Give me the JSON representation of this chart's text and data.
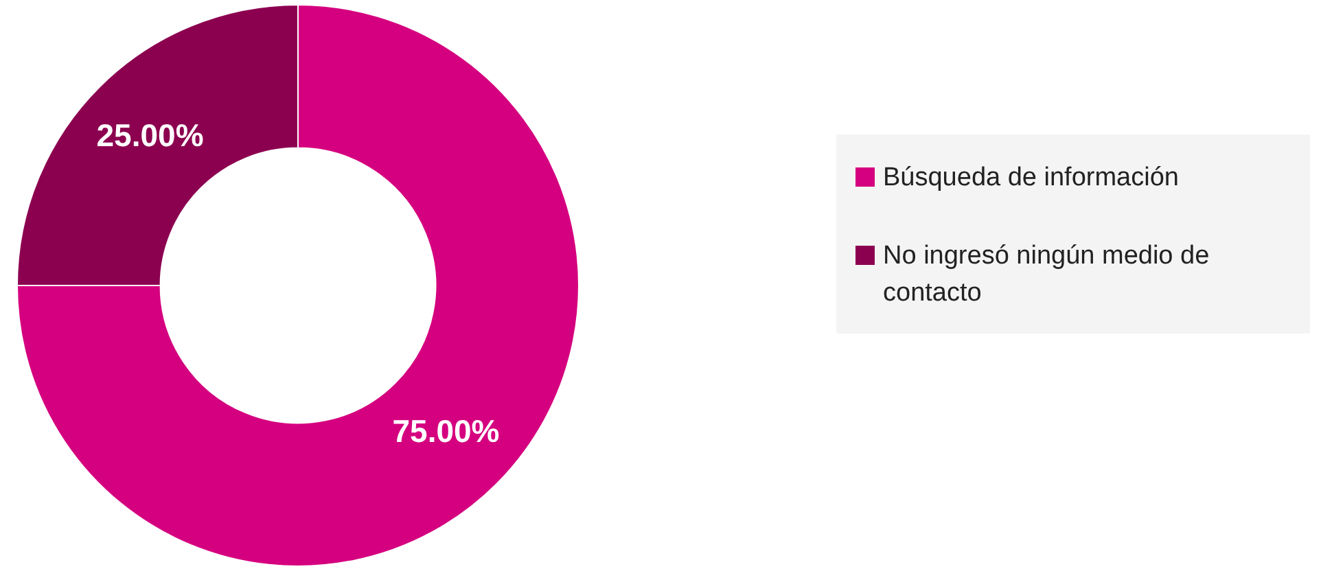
{
  "chart_data": {
    "type": "donut",
    "categories": [
      "Búsqueda de información",
      "No ingresó ningún medio de contacto"
    ],
    "values": [
      75,
      25
    ],
    "colors": [
      "#d5007f",
      "#8c0050"
    ],
    "value_labels": [
      "75.00%",
      "25.00%"
    ],
    "legend": "right"
  }
}
